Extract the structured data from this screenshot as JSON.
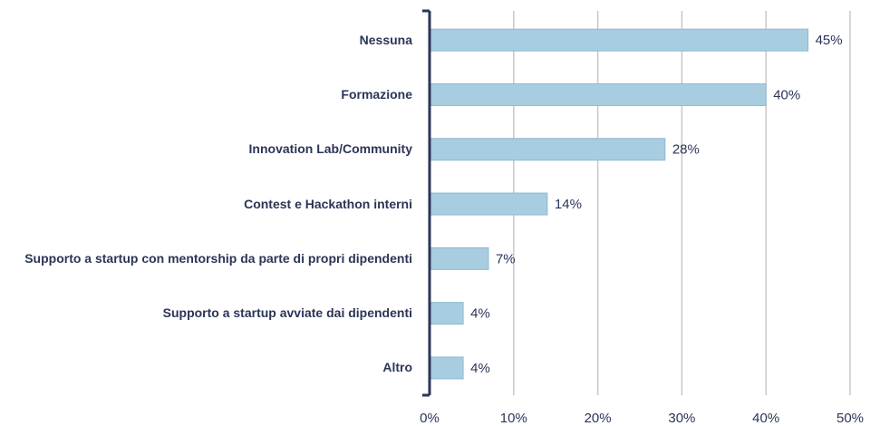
{
  "chart_data": {
    "type": "bar",
    "orientation": "horizontal",
    "categories": [
      "Nessuna",
      "Formazione",
      "Innovation Lab/Community",
      "Contest e Hackathon interni",
      "Supporto a startup con mentorship da parte di propri dipendenti",
      "Supporto a startup avviate dai dipendenti",
      "Altro"
    ],
    "values": [
      45,
      40,
      28,
      14,
      7,
      4,
      4
    ],
    "value_labels": [
      "45%",
      "40%",
      "28%",
      "14%",
      "7%",
      "4%",
      "4%"
    ],
    "color": "#a8cde0",
    "xlim": [
      0,
      50
    ],
    "xticks": [
      {
        "value": 0,
        "label": "0%"
      },
      {
        "value": 10,
        "label": "10%"
      },
      {
        "value": 20,
        "label": "20%"
      },
      {
        "value": 30,
        "label": "30%"
      },
      {
        "value": 40,
        "label": "40%"
      },
      {
        "value": 50,
        "label": "50%"
      }
    ],
    "grid": true
  }
}
